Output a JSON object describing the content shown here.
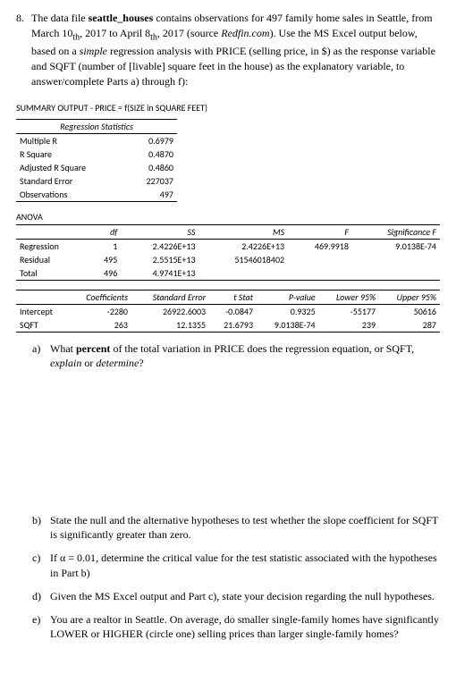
{
  "question": {
    "num": "8.",
    "text_before_bold": "The data file ",
    "bold_name": "seattle_houses",
    "text_after_bold": " contains observations for 497 family home sales in Seattle, from March 10",
    "sub1": "th",
    "text_mid1": ", 2017 to April 8",
    "sub2": "th",
    "text_mid2": ", 2017 (source ",
    "italic_src": "Redfin.com",
    "text_mid3": "). Use the MS Excel output below, based on a ",
    "italic_simple": "simple",
    "text_mid4": " regression analysis with PRICE (selling price, in $) as the response variable and SQFT (number of [livable] square feet in the house) as the explanatory variable, to answer/complete Parts a) through f):"
  },
  "summary_title": "SUMMARY OUTPUT - PRICE = f(SIZE in SQUARE FEET)",
  "reg_stats": {
    "header": "Regression Statistics",
    "rows": [
      {
        "label": "Multiple R",
        "val": "0.6979"
      },
      {
        "label": "R Square",
        "val": "0.4870"
      },
      {
        "label": "Adjusted R Square",
        "val": "0.4860"
      },
      {
        "label": "Standard Error",
        "val": "227037"
      },
      {
        "label": "Observations",
        "val": "497"
      }
    ]
  },
  "anova": {
    "title": "ANOVA",
    "headers": [
      "",
      "df",
      "SS",
      "MS",
      "F",
      "Significance F"
    ],
    "rows": [
      {
        "c0": "Regression",
        "c1": "1",
        "c2": "2.4226E+13",
        "c3": "2.4226E+13",
        "c4": "469.9918",
        "c5": "9.0138E-74"
      },
      {
        "c0": "Residual",
        "c1": "495",
        "c2": "2.5515E+13",
        "c3": "51546018402",
        "c4": "",
        "c5": ""
      },
      {
        "c0": "Total",
        "c1": "496",
        "c2": "4.9741E+13",
        "c3": "",
        "c4": "",
        "c5": ""
      }
    ]
  },
  "coef": {
    "headers": [
      "",
      "Coefficients",
      "Standard Error",
      "t Stat",
      "P-value",
      "Lower 95%",
      "Upper 95%"
    ],
    "rows": [
      {
        "c0": "Intercept",
        "c1": "-2280",
        "c2": "26922.6003",
        "c3": "-0.0847",
        "c4": "0.9325",
        "c5": "-55177",
        "c6": "50616"
      },
      {
        "c0": "SQFT",
        "c1": "263",
        "c2": "12.1355",
        "c3": "21.6793",
        "c4": "9.0138E-74",
        "c5": "239",
        "c6": "287"
      }
    ]
  },
  "parts": {
    "a": {
      "letter": "a)",
      "before": "What ",
      "bold": "percent",
      "after": " of the total variation in PRICE does the regression equation, or SQFT, ",
      "italic": "explain",
      "mid": " or ",
      "italic2": "determine",
      "end": "?"
    },
    "b": {
      "letter": "b)",
      "text": "State the null and the alternative hypotheses to test whether the slope coefficient for SQFT is significantly greater than zero."
    },
    "c": {
      "letter": "c)",
      "before": "If ",
      "alpha": "α = 0.01",
      "after": ", determine the critical value for the test statistic associated with the hypotheses in Part b)"
    },
    "d": {
      "letter": "d)",
      "text": "Given the MS Excel output and Part c), state your decision regarding the null hypotheses."
    },
    "e": {
      "letter": "e)",
      "text": "You are a realtor in Seattle. On average, do smaller single-family homes have significantly LOWER or HIGHER (circle one) selling prices than larger single-family homes?"
    }
  }
}
